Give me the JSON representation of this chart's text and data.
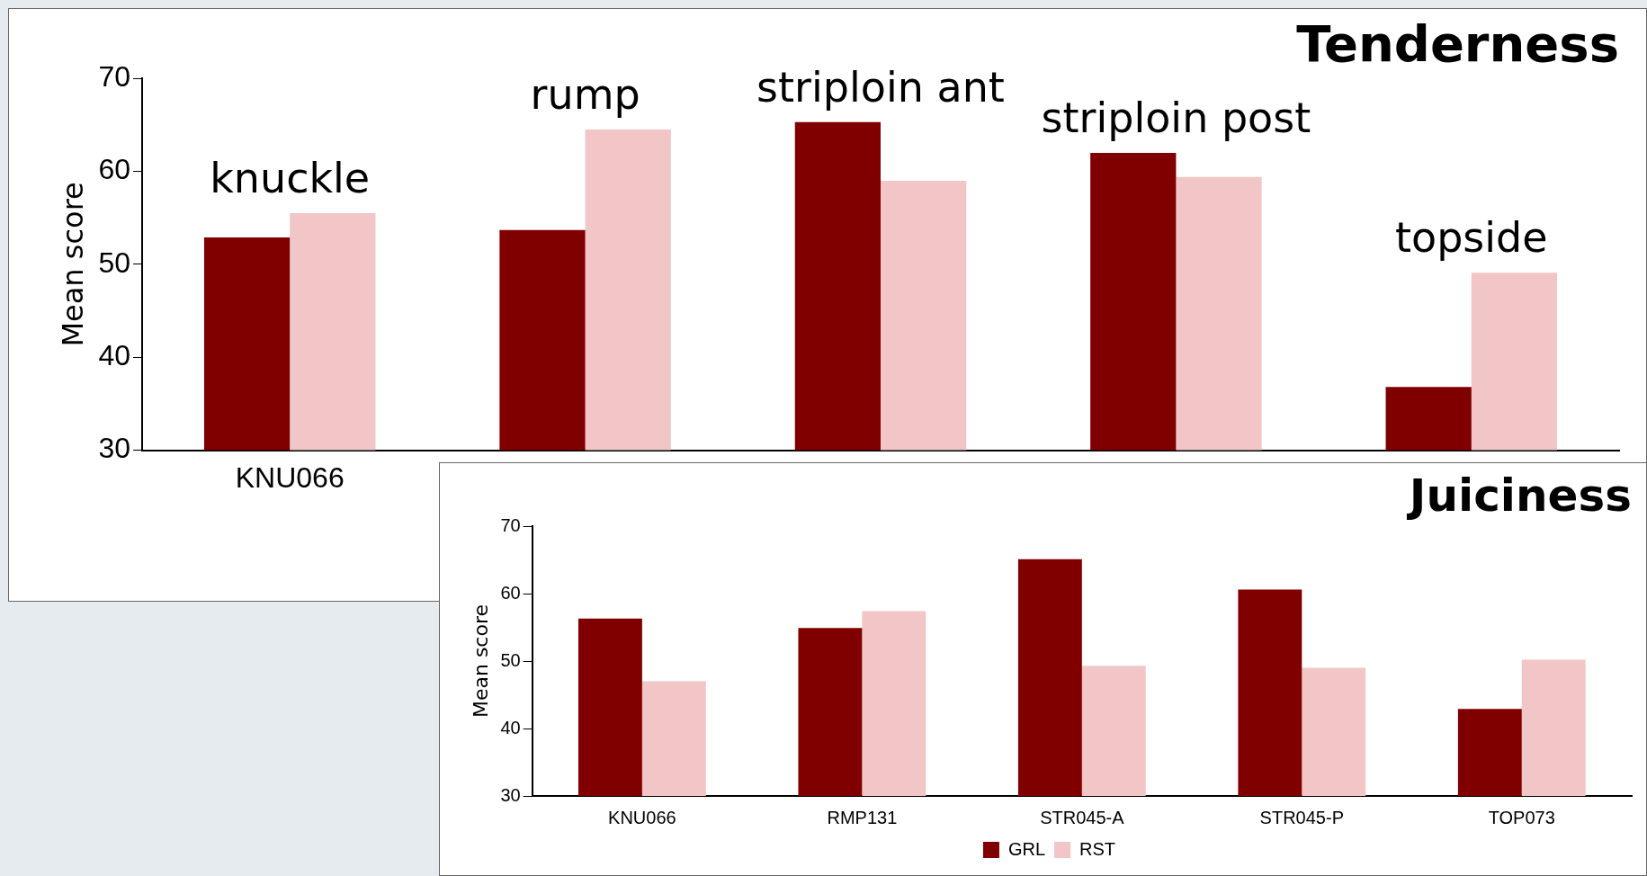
{
  "chart_data": [
    {
      "type": "bar",
      "title": "Tenderness",
      "ylabel": "Mean score",
      "categories": [
        "KNU066",
        null,
        null,
        null,
        null
      ],
      "series": [
        {
          "color": "#800000",
          "values": [
            52.9,
            53.7,
            65.3,
            62.0,
            36.8
          ]
        },
        {
          "color": "#f2c6c6",
          "values": [
            55.5,
            64.5,
            59.0,
            59.4,
            49.1
          ]
        }
      ],
      "ylim": [
        30,
        70
      ],
      "yticks": [
        30,
        40,
        50,
        60,
        70
      ],
      "annotations": [
        "knuckle",
        "rump",
        "striploin ant",
        "striploin post",
        "topside"
      ]
    },
    {
      "type": "bar",
      "title": "Juiciness",
      "ylabel": "Mean score",
      "categories": [
        "KNU066",
        "RMP131",
        "STR045-A",
        "STR045-P",
        "TOP073"
      ],
      "series": [
        {
          "name": "GRL",
          "color": "#800000",
          "values": [
            56.3,
            54.9,
            65.1,
            60.6,
            42.9
          ]
        },
        {
          "name": "RST",
          "color": "#f2c6c6",
          "values": [
            47.0,
            57.4,
            49.3,
            49.0,
            50.2
          ]
        }
      ],
      "ylim": [
        30,
        70
      ],
      "yticks": [
        30,
        40,
        50,
        60,
        70
      ],
      "legend": "bottom"
    }
  ]
}
